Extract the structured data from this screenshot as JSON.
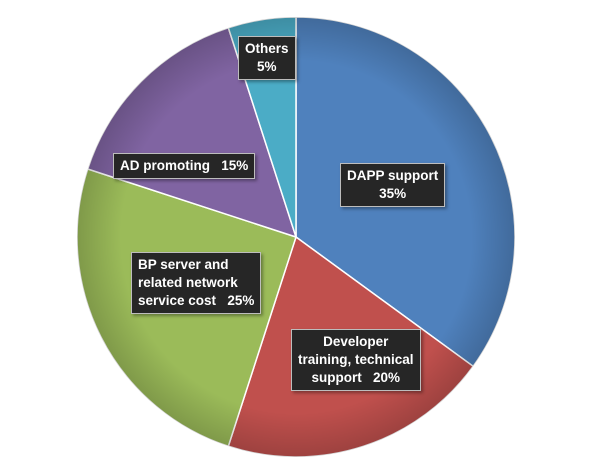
{
  "chart_data": {
    "type": "pie",
    "title": "",
    "slices": [
      {
        "label_lines": [
          "DAPP support"
        ],
        "value_text": "35%",
        "value": 35,
        "color": "#4f81bd",
        "value_on_new_line": true
      },
      {
        "label_lines": [
          "Developer",
          "training, technical",
          "support"
        ],
        "value_text": "20%",
        "value": 20,
        "color": "#c0504d",
        "value_on_new_line": false
      },
      {
        "label_lines": [
          "BP server and",
          "related network",
          "service cost"
        ],
        "value_text": "25%",
        "value": 25,
        "color": "#9bbb59",
        "value_on_new_line": false
      },
      {
        "label_lines": [
          "AD promoting"
        ],
        "value_text": "15%",
        "value": 15,
        "color": "#8064a2",
        "value_on_new_line": false
      },
      {
        "label_lines": [
          "Others"
        ],
        "value_text": "5%",
        "value": 5,
        "color": "#4bacc6",
        "value_on_new_line": true
      }
    ],
    "legend": "none",
    "start": "12 o'clock, clockwise"
  }
}
